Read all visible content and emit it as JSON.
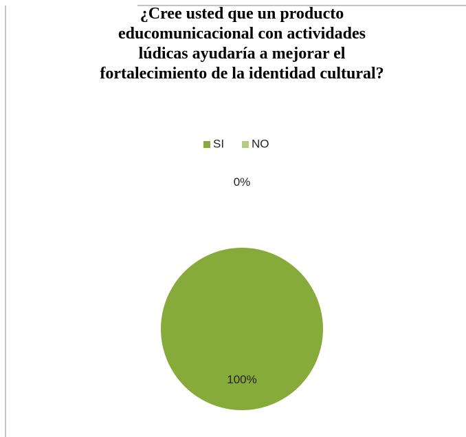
{
  "chart_data": {
    "type": "pie",
    "title": "¿Cree usted que un producto\neducomunicacional con actividades\nlúdicas ayudaría a mejorar el\nfortalecimiento de la identidad cultural?",
    "categories": [
      "SI",
      "NO"
    ],
    "values": [
      100,
      0
    ],
    "value_labels": [
      "100%",
      "0%"
    ],
    "colors": [
      "#87ab3b",
      "#b3cc82"
    ],
    "legend": "top"
  }
}
